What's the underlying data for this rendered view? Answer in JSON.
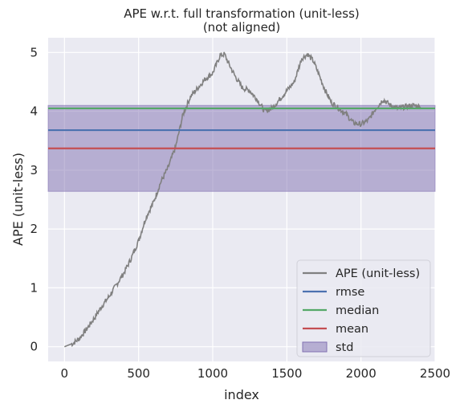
{
  "chart_data": {
    "type": "line",
    "title": "APE w.r.t. full transformation (unit-less)",
    "subtitle": "(not aligned)",
    "xlabel": "index",
    "ylabel": "APE (unit-less)",
    "xlim": [
      -110,
      2500
    ],
    "ylim": [
      -0.25,
      5.25
    ],
    "xticks": [
      0,
      500,
      1000,
      1500,
      2000,
      2500
    ],
    "yticks": [
      0,
      1,
      2,
      3,
      4,
      5
    ],
    "grid": true,
    "legend_position": "bottom-right",
    "series": [
      {
        "name": "APE (unit-less)",
        "color": "#808080",
        "x": [
          0,
          20,
          40,
          60,
          80,
          100,
          150,
          200,
          250,
          300,
          350,
          400,
          450,
          500,
          550,
          600,
          650,
          700,
          750,
          800,
          850,
          900,
          950,
          1000,
          1050,
          1080,
          1100,
          1150,
          1200,
          1250,
          1300,
          1350,
          1400,
          1450,
          1500,
          1550,
          1600,
          1640,
          1680,
          1720,
          1760,
          1800,
          1850,
          1900,
          1950,
          2000,
          2050,
          2100,
          2150,
          2200,
          2250,
          2300,
          2350,
          2400
        ],
        "y": [
          0.0,
          0.02,
          0.04,
          0.06,
          0.1,
          0.14,
          0.3,
          0.48,
          0.68,
          0.85,
          1.05,
          1.25,
          1.5,
          1.8,
          2.2,
          2.45,
          2.8,
          3.05,
          3.4,
          3.95,
          4.25,
          4.4,
          4.55,
          4.65,
          4.95,
          4.97,
          4.85,
          4.6,
          4.4,
          4.35,
          4.2,
          4.0,
          4.05,
          4.2,
          4.35,
          4.5,
          4.9,
          4.97,
          4.85,
          4.6,
          4.35,
          4.15,
          4.05,
          3.95,
          3.8,
          3.78,
          3.85,
          4.05,
          4.2,
          4.1,
          4.05,
          4.08,
          4.1,
          4.08
        ]
      },
      {
        "name": "rmse",
        "color": "#4c72b0",
        "value": 3.68
      },
      {
        "name": "median",
        "color": "#55a868",
        "value": 4.05
      },
      {
        "name": "mean",
        "color": "#c44e52",
        "value": 3.37
      },
      {
        "name": "std",
        "color": "#8172b2",
        "range": [
          2.64,
          4.1
        ]
      }
    ]
  }
}
